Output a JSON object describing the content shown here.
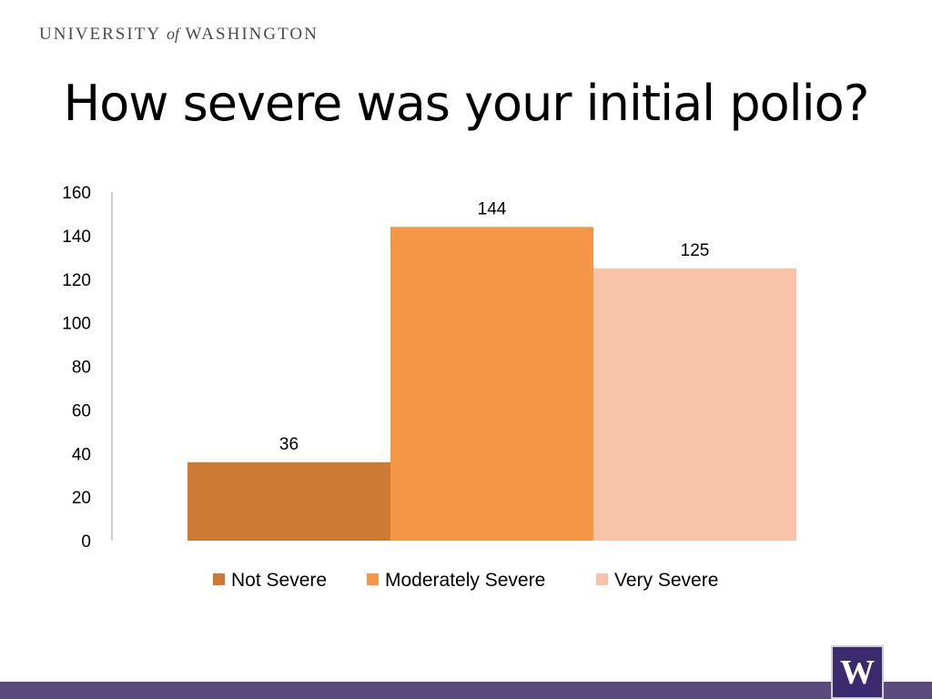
{
  "header": {
    "org_left": "UNIVERSITY",
    "org_of": "of",
    "org_right": "WASHINGTON"
  },
  "slide_title": "How severe was your initial polio?",
  "logo": {
    "letter": "W"
  },
  "colors": {
    "footer": "#5a4a7e",
    "logo_bg": "#3b2a6e"
  },
  "chart_data": {
    "type": "bar",
    "title": "",
    "xlabel": "",
    "ylabel": "",
    "ylim": [
      0,
      160
    ],
    "yticks": [
      0,
      20,
      40,
      60,
      80,
      100,
      120,
      140,
      160
    ],
    "legend_position": "bottom",
    "grid": false,
    "series": [
      {
        "name": "Not Severe",
        "value": 36,
        "color": "#cc7a35"
      },
      {
        "name": "Moderately Severe",
        "value": 144,
        "color": "#f49646"
      },
      {
        "name": "Very Severe",
        "value": 125,
        "color": "#f8c3a8"
      }
    ]
  }
}
